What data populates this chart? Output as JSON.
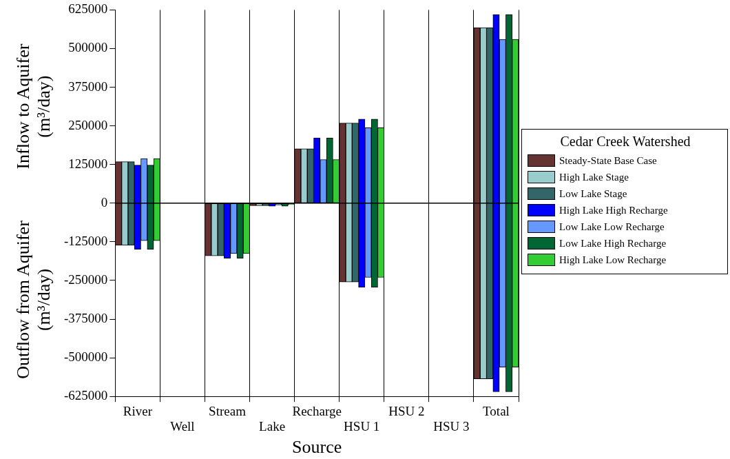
{
  "chart_data": {
    "type": "bar",
    "xlabel": "Source",
    "ylabel": "Inflow to Aquifer (m³/day)",
    "annotations": [
      "Outflow from Aquifer (m³/day)"
    ],
    "legend_title": "Cedar Creek Watershed",
    "legend": "right",
    "grid": "x",
    "categories": [
      "River",
      "Well",
      "Stream",
      "Lake",
      "Recharge",
      "HSU 1",
      "HSU 2",
      "HSU 3",
      "Total"
    ],
    "ylim": [
      -625000,
      625000
    ],
    "yticks": [
      -625000,
      -500000,
      -375000,
      -250000,
      -125000,
      0,
      125000,
      250000,
      375000,
      500000,
      625000
    ],
    "ref_lines": [
      {
        "axis": "y",
        "value": 0,
        "color": "#000000"
      }
    ],
    "series": [
      {
        "name": "Steady-State Base Case",
        "color": "#663333",
        "base": [
          -136000,
          0,
          -170000,
          -8000,
          0,
          -255000,
          0,
          0,
          -568000
        ],
        "values": [
          270000,
          0,
          170000,
          8000,
          176000,
          514000,
          0,
          0,
          1136000
        ]
      },
      {
        "name": "High Lake Stage",
        "color": "#99cccc",
        "base": [
          -136000,
          0,
          -170000,
          -8000,
          0,
          -255000,
          0,
          0,
          -568000
        ],
        "values": [
          270000,
          0,
          170000,
          8000,
          176000,
          514000,
          0,
          0,
          1136000
        ]
      },
      {
        "name": "Low Lake Stage",
        "color": "#336666",
        "base": [
          -136000,
          0,
          -170000,
          -8000,
          0,
          -255000,
          0,
          0,
          -568000
        ],
        "values": [
          270000,
          0,
          170000,
          8000,
          176000,
          514000,
          0,
          0,
          1136000
        ]
      },
      {
        "name": "High Lake High Recharge",
        "color": "#0000ff",
        "base": [
          -149000,
          0,
          -178000,
          -10000,
          0,
          -272000,
          0,
          0,
          -610000
        ],
        "values": [
          272000,
          0,
          178000,
          10000,
          211000,
          544000,
          0,
          0,
          1220000
        ]
      },
      {
        "name": "Low Lake Low Recharge",
        "color": "#6699ff",
        "base": [
          -121000,
          0,
          -163000,
          -6000,
          0,
          -240000,
          0,
          0,
          -530000
        ],
        "values": [
          265000,
          0,
          163000,
          6000,
          141000,
          484000,
          0,
          0,
          1060000
        ]
      },
      {
        "name": "Low Lake High Recharge",
        "color": "#006633",
        "base": [
          -149000,
          0,
          -178000,
          -10000,
          0,
          -272000,
          0,
          0,
          -610000
        ],
        "values": [
          272000,
          0,
          178000,
          10000,
          211000,
          544000,
          0,
          0,
          1220000
        ]
      },
      {
        "name": "High Lake Low Recharge",
        "color": "#33cc33",
        "base": [
          -121000,
          0,
          -163000,
          -5000,
          0,
          -240000,
          0,
          0,
          -530000
        ],
        "values": [
          265000,
          0,
          163000,
          5000,
          141000,
          484000,
          0,
          0,
          1060000
        ]
      }
    ]
  }
}
